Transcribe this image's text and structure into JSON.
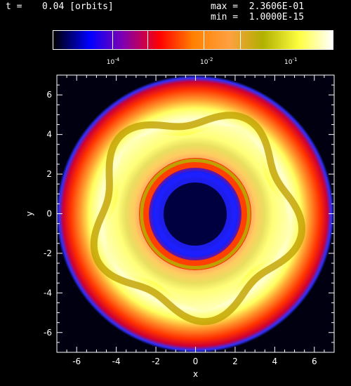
{
  "header": {
    "time_label": "t =",
    "time_value": "0.04 [orbits]",
    "max_label": "max =",
    "max_value": "2.3606E-01",
    "min_label": "min =",
    "min_value": "1.0000E-15"
  },
  "colorbar": {
    "ticks": [
      {
        "base": "10",
        "exp": "-4",
        "pos": 0.222
      },
      {
        "base": "10",
        "exp": "-2",
        "pos": 0.555
      },
      {
        "base": "10",
        "exp": "-1",
        "pos": 0.855
      }
    ],
    "colors": [
      "#000000",
      "#0000ff",
      "#8000b0",
      "#ff0000",
      "#ff8000",
      "#ffa040",
      "#b0b000",
      "#ffff40",
      "#ffffff"
    ]
  },
  "chart_data": {
    "type": "heatmap",
    "xlabel": "x",
    "ylabel": "y",
    "xlim": [
      -7,
      7
    ],
    "ylim": [
      -7,
      7
    ],
    "xticks": [
      -6,
      -4,
      -2,
      0,
      2,
      4,
      6
    ],
    "yticks": [
      -6,
      -4,
      -2,
      0,
      2,
      4,
      6
    ]
  }
}
